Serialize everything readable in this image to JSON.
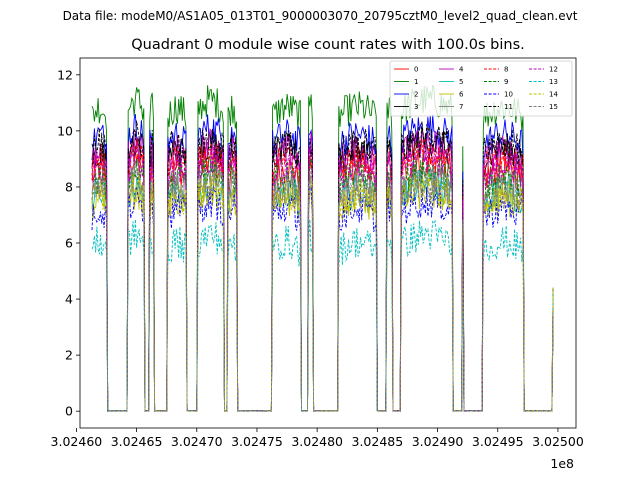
{
  "chart_data": {
    "type": "line",
    "suptitle": "Data file: modeM0/AS1A05_013T01_9000003070_20795cztM0_level2_quad_clean.evt",
    "title": "Quadrant 0 module wise count rates with 100.0s bins.",
    "xlabel": "",
    "ylabel": "",
    "x_offset_label": "1e8",
    "xlim": [
      3.024603,
      3.025015
    ],
    "ylim": [
      -0.6,
      12.6
    ],
    "x_ticks": [
      3.0246,
      3.02465,
      3.0247,
      3.02475,
      3.0248,
      3.02485,
      3.0249,
      3.02495,
      3.025
    ],
    "x_tick_labels": [
      "3.02460",
      "3.02465",
      "3.02470",
      "3.02475",
      "3.02480",
      "3.02485",
      "3.02490",
      "3.02495",
      "3.02500"
    ],
    "y_ticks": [
      0,
      2,
      4,
      6,
      8,
      10,
      12
    ],
    "y_tick_labels": [
      "0",
      "2",
      "4",
      "6",
      "8",
      "10",
      "12"
    ],
    "legend_position": "top-right",
    "on_segments": [
      [
        3.024613,
        3.024625
      ],
      [
        3.024643,
        3.024656
      ],
      [
        3.024661,
        3.024664
      ],
      [
        3.024676,
        3.024691
      ],
      [
        3.024701,
        3.024722
      ],
      [
        3.024726,
        3.024733
      ],
      [
        3.024763,
        3.024786
      ],
      [
        3.024793,
        3.024796
      ],
      [
        3.024818,
        3.024849
      ],
      [
        3.024858,
        3.024862
      ],
      [
        3.02487,
        3.024912
      ],
      [
        3.024938,
        3.024971
      ]
    ],
    "spikes": [
      3.024921
    ],
    "final_point": 3.024996,
    "series": [
      {
        "name": "0",
        "color": "#ff0000",
        "dash": "solid",
        "mean": 8.3
      },
      {
        "name": "1",
        "color": "#008000",
        "dash": "solid",
        "mean": 10.5
      },
      {
        "name": "2",
        "color": "#0000ff",
        "dash": "solid",
        "mean": 9.5
      },
      {
        "name": "3",
        "color": "#000000",
        "dash": "solid",
        "mean": 9.0
      },
      {
        "name": "4",
        "color": "#bf00bf",
        "dash": "solid",
        "mean": 8.9
      },
      {
        "name": "5",
        "color": "#00bfbf",
        "dash": "solid",
        "mean": 7.5
      },
      {
        "name": "6",
        "color": "#bfbf00",
        "dash": "solid",
        "mean": 7.2
      },
      {
        "name": "7",
        "color": "#808080",
        "dash": "solid",
        "mean": 7.8
      },
      {
        "name": "8",
        "color": "#ff0000",
        "dash": "dashed",
        "mean": 8.6
      },
      {
        "name": "9",
        "color": "#008000",
        "dash": "dashed",
        "mean": 8.0
      },
      {
        "name": "10",
        "color": "#0000ff",
        "dash": "dashed",
        "mean": 6.9
      },
      {
        "name": "11",
        "color": "#000000",
        "dash": "dashed",
        "mean": 9.2
      },
      {
        "name": "12",
        "color": "#bf00bf",
        "dash": "dashed",
        "mean": 8.4
      },
      {
        "name": "13",
        "color": "#00bfbf",
        "dash": "dashed",
        "mean": 5.7
      },
      {
        "name": "14",
        "color": "#bfbf00",
        "dash": "dashed",
        "mean": 7.4
      },
      {
        "name": "15",
        "color": "#808080",
        "dash": "dashed",
        "mean": 7.6
      }
    ]
  }
}
